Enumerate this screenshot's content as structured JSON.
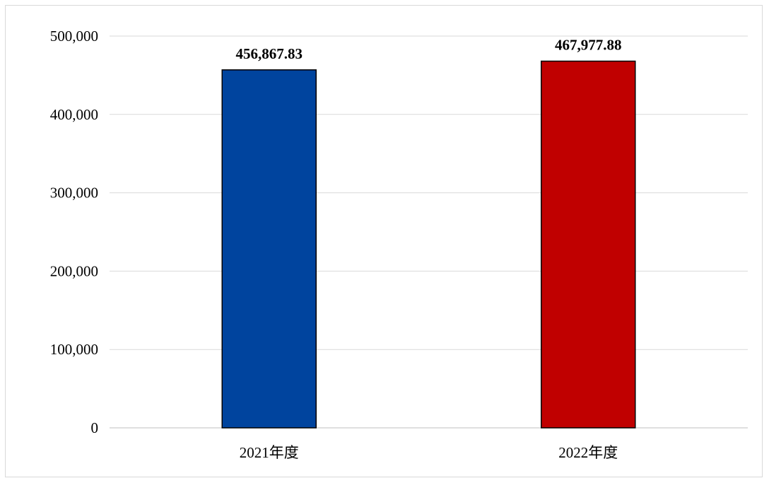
{
  "chart_data": {
    "type": "bar",
    "categories": [
      "2021年度",
      "2022年度"
    ],
    "values": [
      456867.83,
      467977.88
    ],
    "data_labels": [
      "456,867.83",
      "467,977.88"
    ],
    "yticks": [
      0,
      100000,
      200000,
      300000,
      400000,
      500000
    ],
    "ytick_labels": [
      "0",
      "100,000",
      "200,000",
      "300,000",
      "400,000",
      "500,000"
    ],
    "ylim": [
      0,
      500000
    ],
    "title": "",
    "xlabel": "",
    "ylabel": "",
    "grid": true,
    "legend": "none",
    "bar_colors": [
      "#00449e",
      "#c00000"
    ]
  }
}
